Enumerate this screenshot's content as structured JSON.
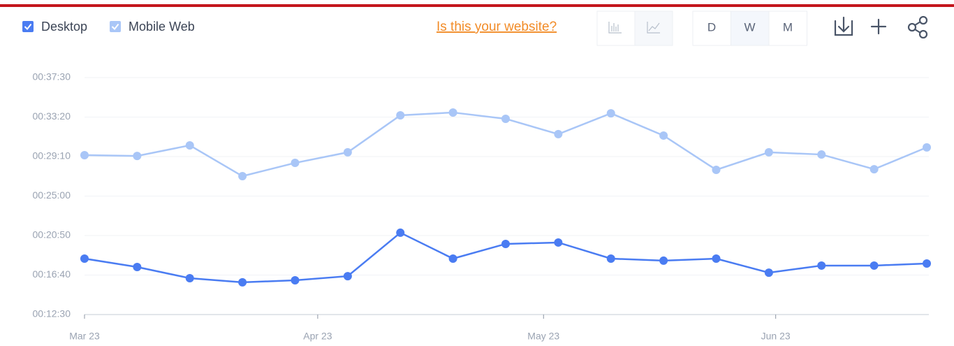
{
  "chart_data": {
    "type": "line",
    "categories": [
      null,
      null,
      null,
      null,
      null,
      null,
      null,
      null,
      null,
      null,
      null,
      null,
      null,
      null,
      null,
      null,
      null
    ],
    "series": [
      {
        "name": "Desktop",
        "color": "#4a7cf2",
        "values": [
          1104,
          1051,
          980,
          954,
          967,
          993,
          1268,
          1104,
          1197,
          1206,
          1104,
          1091,
          1104,
          1015,
          1060,
          1060,
          1073
        ]
      },
      {
        "name": "Mobile Web",
        "color": "#a9c6f7",
        "values": [
          1759,
          1754,
          1821,
          1626,
          1710,
          1777,
          2011,
          2029,
          1989,
          1892,
          2024,
          1883,
          1666,
          1777,
          1763,
          1670,
          1808
        ]
      }
    ],
    "ylim": [
      750,
      2250
    ],
    "yticks": [
      {
        "value": 750,
        "label": "00:12:30"
      },
      {
        "value": 1000,
        "label": "00:16:40"
      },
      {
        "value": 1250,
        "label": "00:20:50"
      },
      {
        "value": 1500,
        "label": "00:25:00"
      },
      {
        "value": 1750,
        "label": "00:29:10"
      },
      {
        "value": 2000,
        "label": "00:33:20"
      },
      {
        "value": 2250,
        "label": "00:37:30"
      }
    ],
    "xticks": [
      {
        "value": 0,
        "label": "Mar 23"
      },
      {
        "value": 4.43,
        "label": "Apr 23"
      },
      {
        "value": 8.72,
        "label": "May 23"
      },
      {
        "value": 13.13,
        "label": "Jun 23"
      }
    ],
    "grid": true
  },
  "ui": {
    "link": "Is this your website?",
    "period_buttons": [
      "D",
      "W",
      "M"
    ]
  }
}
